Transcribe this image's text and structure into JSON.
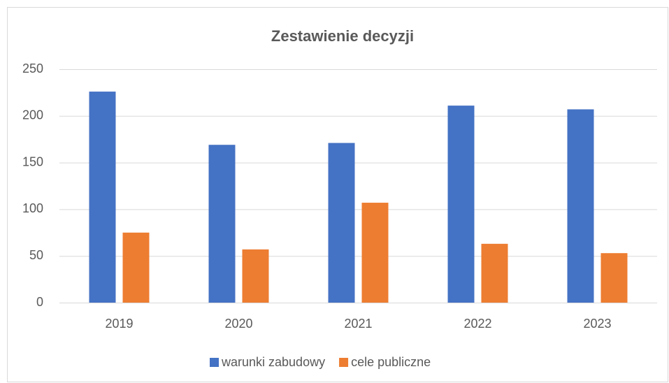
{
  "chart_data": {
    "type": "bar",
    "title": "Zestawienie decyzji",
    "categories": [
      "2019",
      "2020",
      "2021",
      "2022",
      "2023"
    ],
    "series": [
      {
        "name": "warunki zabudowy",
        "color": "#4472c4",
        "values": [
          226,
          169,
          171,
          211,
          207
        ]
      },
      {
        "name": "cele publiczne",
        "color": "#ed7d31",
        "values": [
          75,
          57,
          107,
          63,
          53
        ]
      }
    ],
    "ylim": [
      0,
      250
    ],
    "yticks": [
      0,
      50,
      100,
      150,
      200,
      250
    ],
    "grid": true,
    "legend": "bottom"
  }
}
